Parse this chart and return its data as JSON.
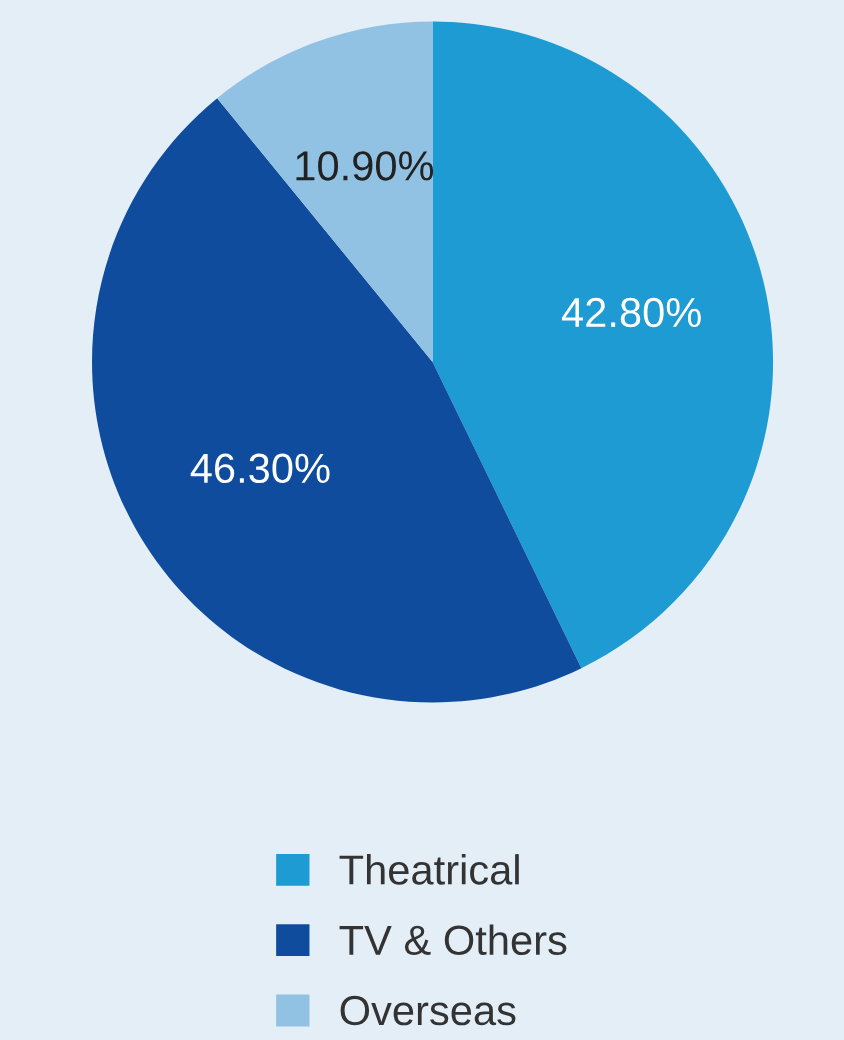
{
  "chart_data": {
    "type": "pie",
    "categories": [
      "Theatrical",
      "TV & Others",
      "Overseas"
    ],
    "values": [
      42.8,
      46.3,
      10.9
    ],
    "colors": [
      "#1f9bd3",
      "#0f4c9e",
      "#91c2e4"
    ],
    "value_labels": [
      "42.80%",
      "46.30%",
      "10.90%"
    ],
    "legend": "bottom"
  }
}
